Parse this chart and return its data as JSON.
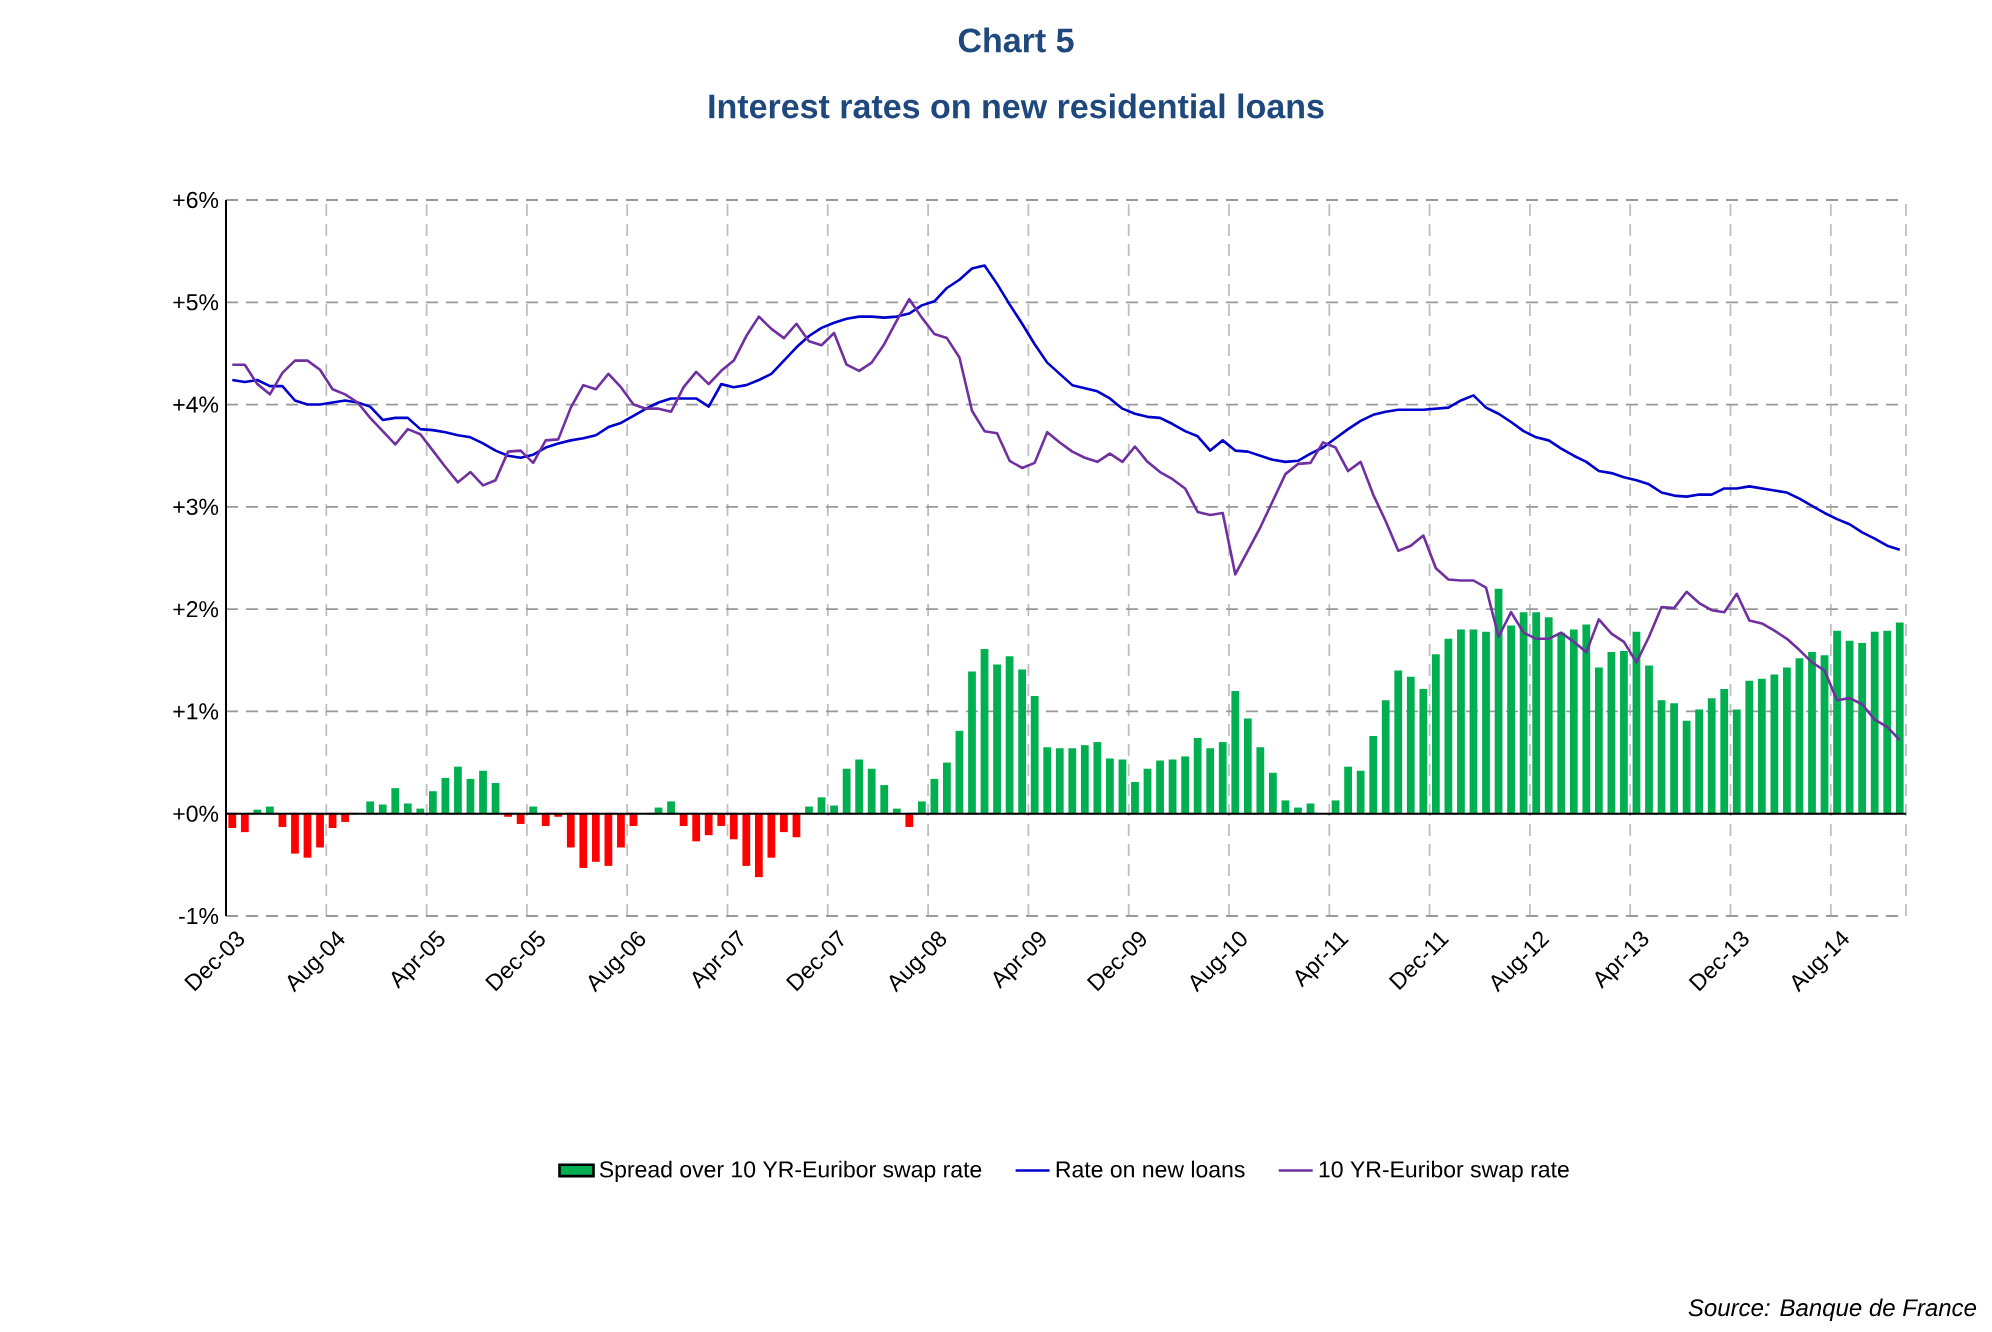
{
  "chart_data": {
    "type": "bar",
    "title": "Chart 5",
    "subtitle": "Interest rates on new residential loans",
    "categories": [
      "Dec-03",
      null,
      null,
      null,
      null,
      null,
      null,
      null,
      "Aug-04",
      null,
      null,
      null,
      null,
      null,
      null,
      null,
      "Apr-05",
      null,
      null,
      null,
      null,
      null,
      null,
      null,
      "Dec-05",
      null,
      null,
      null,
      null,
      null,
      null,
      null,
      "Aug-06",
      null,
      null,
      null,
      null,
      null,
      null,
      null,
      "Apr-07",
      null,
      null,
      null,
      null,
      null,
      null,
      null,
      "Dec-07",
      null,
      null,
      null,
      null,
      null,
      null,
      null,
      "Aug-08",
      null,
      null,
      null,
      null,
      null,
      null,
      null,
      "Apr-09",
      null,
      null,
      null,
      null,
      null,
      null,
      null,
      "Dec-09",
      null,
      null,
      null,
      null,
      null,
      null,
      null,
      "Aug-10",
      null,
      null,
      null,
      null,
      null,
      null,
      null,
      "Apr-11",
      null,
      null,
      null,
      null,
      null,
      null,
      null,
      "Dec-11",
      null,
      null,
      null,
      null,
      null,
      null,
      null,
      "Aug-12",
      null,
      null,
      null,
      null,
      null,
      null,
      null,
      "Apr-13",
      null,
      null,
      null,
      null,
      null,
      null,
      null,
      "Dec-13",
      null,
      null,
      null,
      null,
      null,
      null,
      null,
      "Aug-14",
      null,
      null,
      null,
      null,
      null
    ],
    "series": [
      {
        "name": "Spread over 10 YR-Euribor swap rate",
        "color": "#00b050",
        "values": [
          -0.14,
          -0.18,
          0.04,
          0.07,
          -0.13,
          -0.39,
          -0.43,
          -0.33,
          -0.14,
          -0.08,
          0,
          0.12,
          0.09,
          0.25,
          0.1,
          0.05,
          0.22,
          0.35,
          0.46,
          0.34,
          0.42,
          0.3,
          -0.03,
          -0.1,
          0.07,
          -0.12,
          -0.03,
          -0.33,
          -0.53,
          -0.47,
          -0.51,
          -0.33,
          -0.12,
          0,
          0.06,
          0.12,
          -0.12,
          -0.27,
          -0.21,
          -0.12,
          -0.25,
          -0.51,
          -0.62,
          -0.43,
          -0.18,
          -0.23,
          0.07,
          0.16,
          0.08,
          0.44,
          0.53,
          0.44,
          0.28,
          0.05,
          -0.13,
          0.12,
          0.34,
          0.5,
          0.81,
          1.39,
          1.61,
          1.46,
          1.54,
          1.41,
          1.15,
          0.65,
          0.64,
          0.64,
          0.67,
          0.7,
          0.54,
          0.53,
          0.31,
          0.44,
          0.52,
          0.53,
          0.56,
          0.74,
          0.64,
          0.7,
          1.2,
          0.93,
          0.65,
          0.4,
          0.13,
          0.06,
          0.1,
          0,
          0.13,
          0.46,
          0.42,
          0.76,
          1.11,
          1.4,
          1.34,
          1.22,
          1.56,
          1.71,
          1.8,
          1.8,
          1.78,
          2.2,
          1.84,
          1.97,
          1.97,
          1.92,
          1.77,
          1.8,
          1.85,
          1.43,
          1.58,
          1.59,
          1.78,
          1.45,
          1.11,
          1.08,
          0.91,
          1.02,
          1.13,
          1.22,
          1.02,
          1.3,
          1.32,
          1.36,
          1.43,
          1.52,
          1.58,
          1.55,
          1.79,
          1.69,
          1.67,
          1.78,
          1.79,
          1.87
        ],
        "colors": [
          "#ff0000",
          "#ff0000",
          "#00b050",
          "#00b050",
          "#ff0000",
          "#ff0000",
          "#ff0000",
          "#ff0000",
          "#ff0000",
          "#ff0000",
          "#00b050",
          "#00b050",
          "#00b050",
          "#00b050",
          "#00b050",
          "#00b050",
          "#00b050",
          "#00b050",
          "#00b050",
          "#00b050",
          "#00b050",
          "#00b050",
          "#ff0000",
          "#ff0000",
          "#00b050",
          "#ff0000",
          "#ff0000",
          "#ff0000",
          "#ff0000",
          "#ff0000",
          "#ff0000",
          "#ff0000",
          "#ff0000",
          "#00b050",
          "#00b050",
          "#00b050",
          "#ff0000",
          "#ff0000",
          "#ff0000",
          "#ff0000",
          "#ff0000",
          "#ff0000",
          "#ff0000",
          "#ff0000",
          "#ff0000",
          "#ff0000",
          "#00b050",
          "#00b050",
          "#00b050",
          "#00b050",
          "#00b050",
          "#00b050",
          "#00b050",
          "#00b050",
          "#ff0000",
          "#00b050",
          "#00b050",
          "#00b050",
          "#00b050",
          "#00b050",
          "#00b050",
          "#00b050",
          "#00b050",
          "#00b050",
          "#00b050",
          "#00b050",
          "#00b050",
          "#00b050",
          "#00b050",
          "#00b050",
          "#00b050",
          "#00b050",
          "#00b050",
          "#00b050",
          "#00b050",
          "#00b050",
          "#00b050",
          "#00b050",
          "#00b050",
          "#00b050",
          "#00b050",
          "#00b050",
          "#00b050",
          "#00b050",
          "#00b050",
          "#00b050",
          "#00b050",
          "#00b050",
          "#00b050",
          "#00b050",
          "#00b050",
          "#00b050",
          "#00b050",
          "#00b050",
          "#00b050",
          "#00b050",
          "#00b050",
          "#00b050",
          "#00b050",
          "#00b050",
          "#00b050",
          "#00b050",
          "#00b050",
          "#00b050",
          "#00b050",
          "#00b050",
          "#00b050",
          "#00b050",
          "#00b050",
          "#00b050",
          "#00b050",
          "#00b050",
          "#00b050",
          "#00b050",
          "#00b050",
          "#00b050",
          "#00b050",
          "#00b050",
          "#00b050",
          "#00b050",
          "#00b050",
          "#00b050",
          "#00b050",
          "#00b050",
          "#00b050",
          "#00b050",
          "#00b050",
          "#00b050",
          "#00b050",
          "#00b050",
          "#00b050",
          "#00b050",
          "#00b050",
          "#00b050"
        ]
      },
      {
        "name": "Rate on new loans",
        "type": "line",
        "color": "#0000cc",
        "values": [
          4.24,
          4.22,
          4.24,
          4.18,
          4.18,
          4.04,
          4.0,
          4.0,
          4.02,
          4.04,
          4.02,
          3.98,
          3.85,
          3.87,
          3.87,
          3.76,
          3.75,
          3.73,
          3.7,
          3.68,
          3.62,
          3.55,
          3.5,
          3.48,
          3.51,
          3.58,
          3.62,
          3.65,
          3.67,
          3.7,
          3.78,
          3.82,
          3.89,
          3.96,
          4.02,
          4.06,
          4.06,
          4.06,
          3.98,
          4.2,
          4.17,
          4.19,
          4.24,
          4.3,
          4.43,
          4.56,
          4.67,
          4.75,
          4.8,
          4.84,
          4.86,
          4.86,
          4.85,
          4.86,
          4.89,
          4.97,
          5.01,
          5.14,
          5.22,
          5.33,
          5.36,
          5.18,
          4.98,
          4.79,
          4.59,
          4.41,
          4.3,
          4.19,
          4.16,
          4.13,
          4.06,
          3.96,
          3.91,
          3.88,
          3.87,
          3.81,
          3.74,
          3.69,
          3.55,
          3.65,
          3.55,
          3.54,
          3.5,
          3.46,
          3.44,
          3.45,
          3.52,
          3.58,
          3.67,
          3.76,
          3.84,
          3.9,
          3.93,
          3.95,
          3.95,
          3.95,
          3.96,
          3.97,
          4.04,
          4.09,
          3.97,
          3.91,
          3.83,
          3.74,
          3.68,
          3.65,
          3.57,
          3.5,
          3.44,
          3.35,
          3.33,
          3.29,
          3.26,
          3.22,
          3.14,
          3.11,
          3.1,
          3.12,
          3.12,
          3.18,
          3.18,
          3.2,
          3.18,
          3.16,
          3.14,
          3.08,
          3.01,
          2.94,
          2.88,
          2.83,
          2.75,
          2.69,
          2.62,
          2.58
        ]
      },
      {
        "name": "10 YR-Euribor swap rate",
        "type": "line",
        "color": "#7030a0",
        "values": [
          4.39,
          4.39,
          4.2,
          4.1,
          4.31,
          4.43,
          4.43,
          4.34,
          4.15,
          4.1,
          4.02,
          3.87,
          3.74,
          3.61,
          3.76,
          3.71,
          3.55,
          3.39,
          3.24,
          3.34,
          3.21,
          3.26,
          3.54,
          3.55,
          3.43,
          3.65,
          3.66,
          3.97,
          4.19,
          4.15,
          4.3,
          4.17,
          4.0,
          3.96,
          3.96,
          3.93,
          4.17,
          4.32,
          4.2,
          4.33,
          4.43,
          4.67,
          4.86,
          4.74,
          4.65,
          4.79,
          4.62,
          4.58,
          4.7,
          4.39,
          4.33,
          4.41,
          4.59,
          4.82,
          5.03,
          4.85,
          4.69,
          4.65,
          4.46,
          3.94,
          3.74,
          3.72,
          3.45,
          3.38,
          3.43,
          3.73,
          3.63,
          3.54,
          3.48,
          3.44,
          3.52,
          3.44,
          3.59,
          3.44,
          3.34,
          3.27,
          3.18,
          2.95,
          2.92,
          2.94,
          2.34,
          2.57,
          2.8,
          3.06,
          3.32,
          3.42,
          3.43,
          3.63,
          3.58,
          3.35,
          3.44,
          3.12,
          2.86,
          2.57,
          2.62,
          2.72,
          2.4,
          2.29,
          2.28,
          2.28,
          2.21,
          1.73,
          1.97,
          1.77,
          1.71,
          1.71,
          1.77,
          1.68,
          1.58,
          1.9,
          1.76,
          1.68,
          1.48,
          1.73,
          2.02,
          2.01,
          2.17,
          2.06,
          1.99,
          1.97,
          2.15,
          1.89,
          1.86,
          1.79,
          1.71,
          1.6,
          1.48,
          1.4,
          1.11,
          1.13,
          1.07,
          0.92,
          0.85,
          0.72
        ]
      }
    ],
    "ylim": [
      -1,
      6
    ],
    "yticks": [
      {
        "value": -1,
        "label": "-1%"
      },
      {
        "value": 0,
        "label": "+0%"
      },
      {
        "value": 1,
        "label": "+1%"
      },
      {
        "value": 2,
        "label": "+2%"
      },
      {
        "value": 3,
        "label": "+3%"
      },
      {
        "value": 4,
        "label": "+4%"
      },
      {
        "value": 5,
        "label": "+5%"
      },
      {
        "value": 6,
        "label": "+6%"
      }
    ],
    "grid": true,
    "legend": "bottom",
    "annotations": [
      "Source: Banque de France"
    ]
  }
}
